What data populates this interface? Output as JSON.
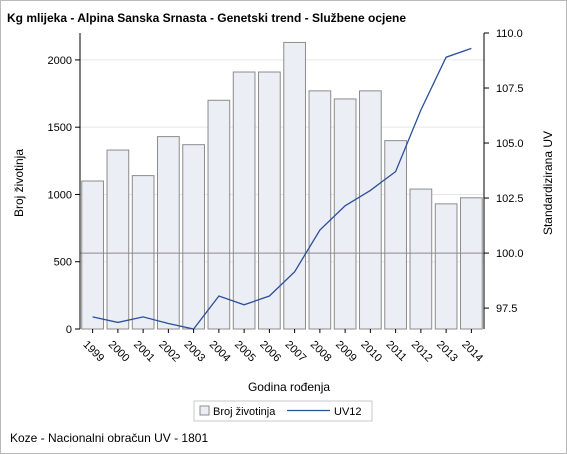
{
  "chart_data": {
    "type": "bar+line",
    "title": "Kg mlijeka - Alpina Sanska Srnasta - Genetski trend - Službene ocjene",
    "xlabel": "Godina rođenja",
    "ylabel_left": "Broj životinja",
    "ylabel_right": "Standardizirana UV",
    "categories": [
      "1999",
      "2000",
      "2001",
      "2002",
      "2003",
      "2004",
      "2005",
      "2006",
      "2007",
      "2008",
      "2009",
      "2010",
      "2011",
      "2012",
      "2013",
      "2014"
    ],
    "series": [
      {
        "name": "Broj životinja",
        "kind": "bar",
        "axis": "left",
        "values": [
          1100,
          1330,
          1140,
          1430,
          1370,
          1700,
          1910,
          1910,
          2130,
          1770,
          1710,
          1770,
          1400,
          1040,
          930,
          975
        ]
      },
      {
        "name": "UV12",
        "kind": "line",
        "axis": "right",
        "values": [
          97.1,
          96.85,
          97.1,
          96.8,
          96.55,
          98.05,
          97.65,
          98.05,
          99.15,
          101.05,
          102.15,
          102.85,
          103.7,
          106.5,
          108.9,
          109.3
        ]
      }
    ],
    "ylim_left": [
      0,
      2200
    ],
    "yticks_left": [
      0,
      500,
      1000,
      1500,
      2000
    ],
    "ylim_right": [
      96.55,
      110.0
    ],
    "yticks_right": [
      "97.5",
      "100.0",
      "102.5",
      "105.0",
      "107.5",
      "110.0"
    ],
    "reference_line_right": 100.0,
    "grid": true,
    "legend_position": "bottom",
    "colors": {
      "bar_fill": "#ebeef5",
      "bar_stroke": "#8c8c8c",
      "line": "#2c4f9c",
      "grid": "#e6e6e6",
      "refline": "#8a8a8a"
    }
  },
  "footnote": "Koze - Nacionalni obračun UV - 1801"
}
